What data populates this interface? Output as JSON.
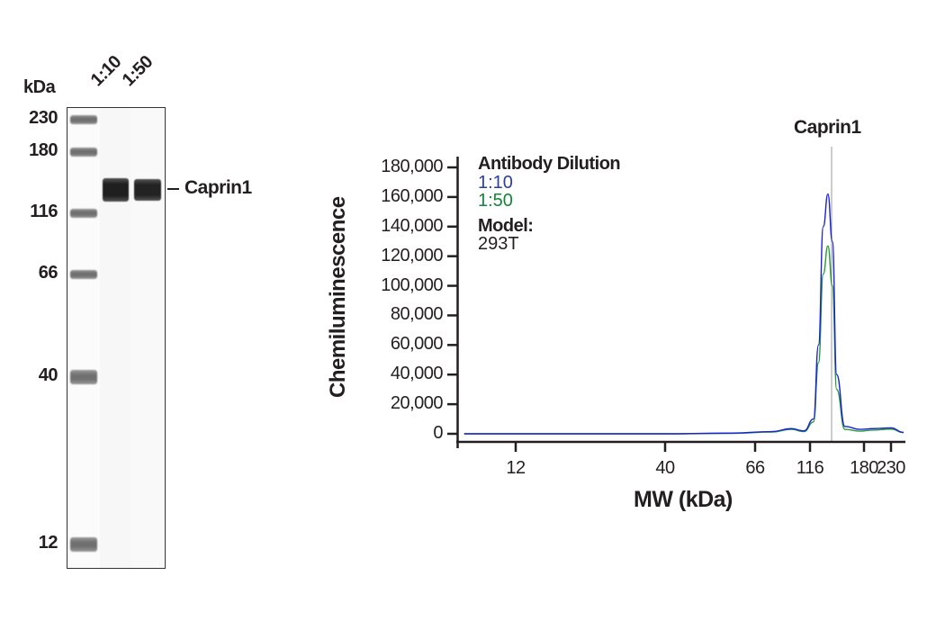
{
  "western_blot": {
    "unit_label": "kDa",
    "lane_labels": [
      "1:10",
      "1:50"
    ],
    "target_label": "Caprin1",
    "markers": [
      {
        "label": "230",
        "y": 132
      },
      {
        "label": "180",
        "y": 168
      },
      {
        "label": "116",
        "y": 236
      },
      {
        "label": "66",
        "y": 304
      },
      {
        "label": "40",
        "y": 418
      },
      {
        "label": "12",
        "y": 604
      }
    ],
    "target_band_y": 208
  },
  "chart_data": {
    "type": "line",
    "title": "",
    "annotation": "Caprin1",
    "xlabel": "MW (kDa)",
    "ylabel": "Chemiluminescence",
    "x_scale": "log",
    "x_ticks": [
      "12",
      "40",
      "66",
      "116",
      "180",
      "230"
    ],
    "y_ticks": [
      "0",
      "20,000",
      "40,000",
      "60,000",
      "80,000",
      "100,000",
      "120,000",
      "140,000",
      "160,000",
      "180,000"
    ],
    "ylim": [
      0,
      180000
    ],
    "grid": false,
    "legend": {
      "title": "Antibody Dilution",
      "entries": [
        {
          "label": "1:10",
          "color": "#2b3f9b"
        },
        {
          "label": "1:50",
          "color": "#14853b"
        }
      ],
      "model_title": "Model:",
      "model_value": "293T",
      "position": "upper-left"
    },
    "series": [
      {
        "name": "1:10",
        "color": "#1a22d6",
        "x": [
          8,
          12,
          40,
          66,
          90,
          105,
          116,
          125,
          130,
          135,
          140,
          145,
          150,
          160,
          180,
          200,
          230,
          260
        ],
        "y": [
          0,
          0,
          0,
          500,
          1500,
          3500,
          2000,
          10000,
          60000,
          140000,
          162000,
          130000,
          40000,
          5000,
          3000,
          3500,
          4000,
          1000
        ]
      },
      {
        "name": "1:50",
        "color": "#2a9a3a",
        "x": [
          8,
          12,
          40,
          66,
          90,
          105,
          116,
          125,
          130,
          135,
          140,
          145,
          150,
          160,
          180,
          200,
          230,
          260
        ],
        "y": [
          0,
          0,
          0,
          300,
          1200,
          3000,
          1500,
          8000,
          48000,
          108000,
          127000,
          100000,
          30000,
          3000,
          1800,
          2500,
          3200,
          800
        ]
      }
    ]
  }
}
